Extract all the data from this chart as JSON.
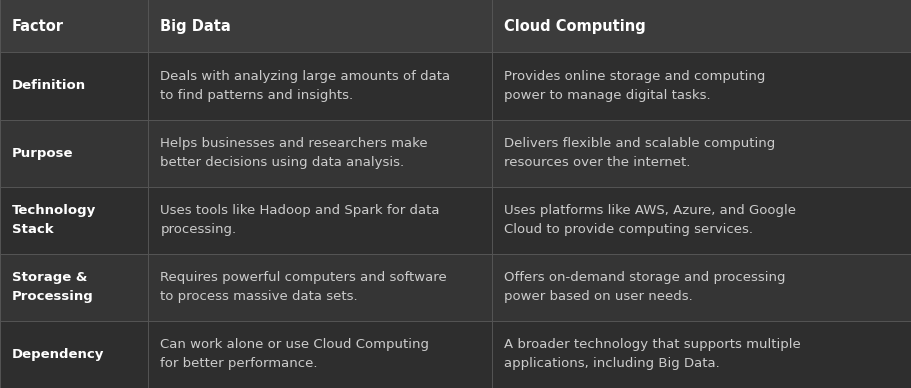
{
  "fig_width": 9.11,
  "fig_height": 3.88,
  "dpi": 100,
  "bg_color": "#2e2e2e",
  "header_bg": "#3c3c3c",
  "row_bg_even": "#2e2e2e",
  "row_bg_odd": "#353535",
  "header_text_color": "#ffffff",
  "factor_text_color": "#ffffff",
  "body_text_color": "#cccccc",
  "grid_color": "#555555",
  "col_starts": [
    0.0,
    0.163,
    0.54
  ],
  "headers": [
    "Factor",
    "Big Data",
    "Cloud Computing"
  ],
  "header_fontsize": 10.5,
  "body_fontsize": 9.5,
  "rows": [
    {
      "factor": "Definition",
      "bigdata": "Deals with analyzing large amounts of data\nto find patterns and insights.",
      "cloud": "Provides online storage and computing\npower to manage digital tasks."
    },
    {
      "factor": "Purpose",
      "bigdata": "Helps businesses and researchers make\nbetter decisions using data analysis.",
      "cloud": "Delivers flexible and scalable computing\nresources over the internet."
    },
    {
      "factor": "Technology\nStack",
      "bigdata": "Uses tools like Hadoop and Spark for data\nprocessing.",
      "cloud": "Uses platforms like AWS, Azure, and Google\nCloud to provide computing services."
    },
    {
      "factor": "Storage &\nProcessing",
      "bigdata": "Requires powerful computers and software\nto process massive data sets.",
      "cloud": "Offers on-demand storage and processing\npower based on user needs."
    },
    {
      "factor": "Dependency",
      "bigdata": "Can work alone or use Cloud Computing\nfor better performance.",
      "cloud": "A broader technology that supports multiple\napplications, including Big Data."
    }
  ]
}
